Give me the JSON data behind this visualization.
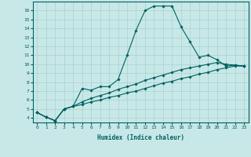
{
  "xlabel": "Humidex (Indice chaleur)",
  "ylabel": "",
  "bg_color": "#c8e8e8",
  "grid_color": "#a8d0d0",
  "line_color": "#006060",
  "xlim": [
    -0.5,
    23.5
  ],
  "ylim": [
    3.5,
    17.0
  ],
  "xticks": [
    0,
    1,
    2,
    3,
    4,
    5,
    6,
    7,
    8,
    9,
    10,
    11,
    12,
    13,
    14,
    15,
    16,
    17,
    18,
    19,
    20,
    21,
    22,
    23
  ],
  "yticks": [
    4,
    5,
    6,
    7,
    8,
    9,
    10,
    11,
    12,
    13,
    14,
    15,
    16
  ],
  "series": [
    [
      4.6,
      4.1,
      3.7,
      5.0,
      5.3,
      7.3,
      7.1,
      7.5,
      7.5,
      8.3,
      11.0,
      13.8,
      16.0,
      16.5,
      16.5,
      16.5,
      14.2,
      12.5,
      10.8,
      11.0,
      10.5,
      9.8,
      9.9,
      9.8
    ],
    [
      4.6,
      4.1,
      3.7,
      5.0,
      5.3,
      5.5,
      5.8,
      6.0,
      6.3,
      6.5,
      6.8,
      7.0,
      7.3,
      7.6,
      7.9,
      8.1,
      8.4,
      8.6,
      8.9,
      9.1,
      9.4,
      9.6,
      9.8,
      9.8
    ],
    [
      4.6,
      4.1,
      3.7,
      5.0,
      5.3,
      5.8,
      6.2,
      6.5,
      6.8,
      7.2,
      7.5,
      7.8,
      8.2,
      8.5,
      8.8,
      9.1,
      9.4,
      9.6,
      9.8,
      10.0,
      10.2,
      10.0,
      9.9,
      9.8
    ]
  ]
}
